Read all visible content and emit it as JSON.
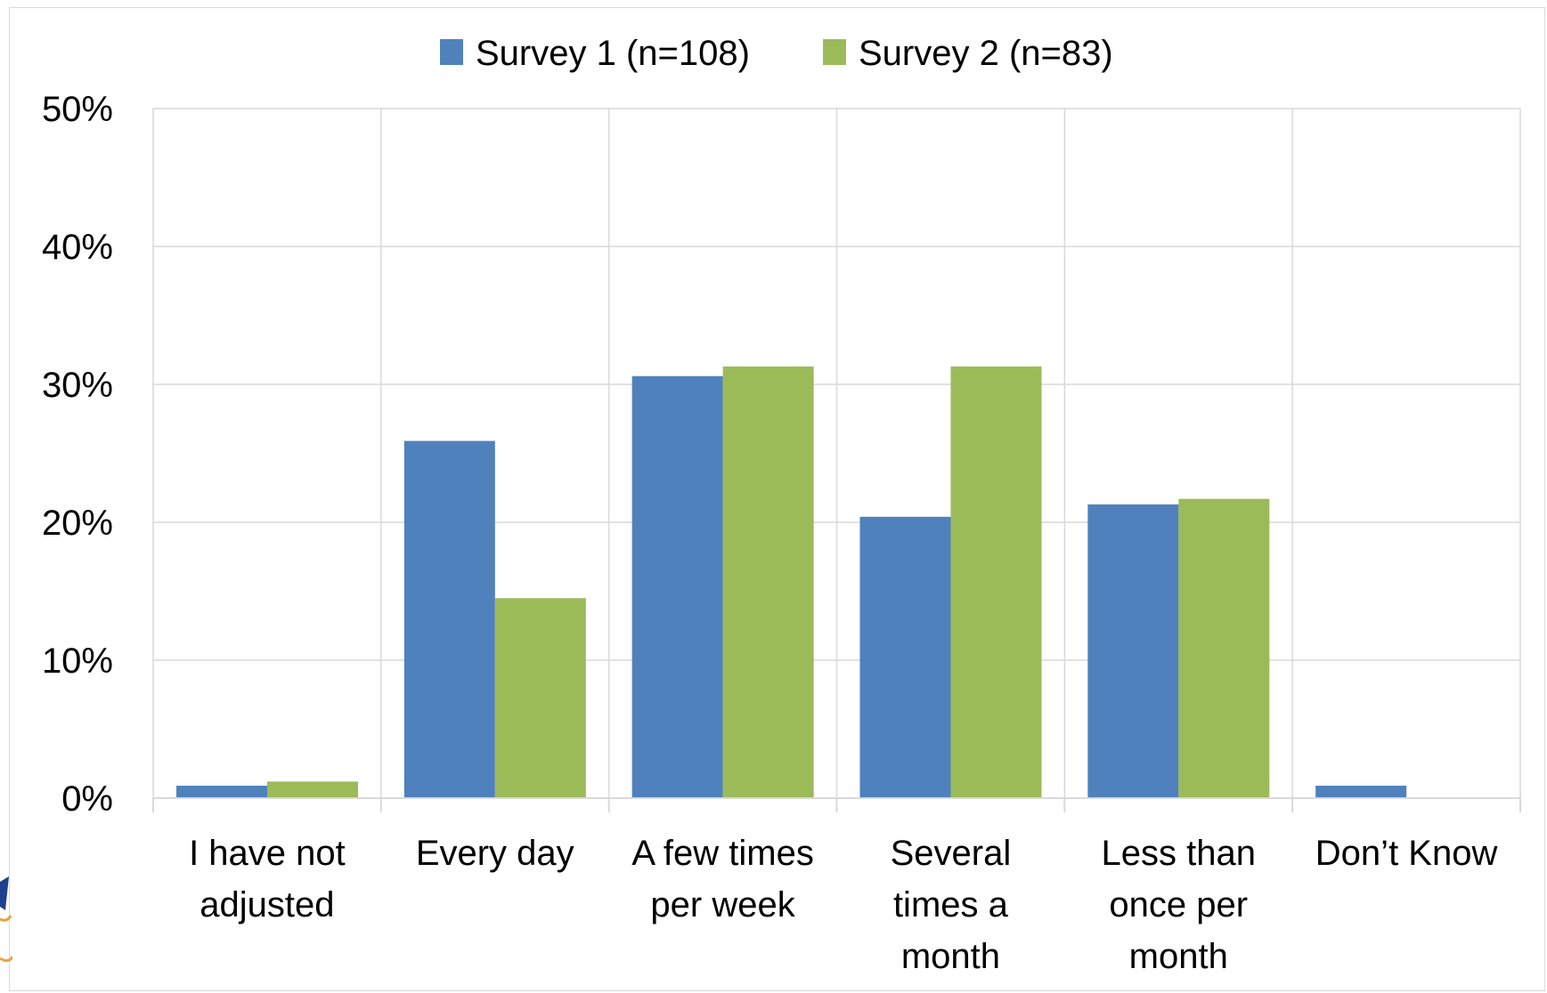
{
  "chart_data": {
    "type": "bar",
    "categories": [
      [
        "I have not",
        "adjusted"
      ],
      [
        "Every day"
      ],
      [
        "A few times",
        "per week"
      ],
      [
        "Several",
        "times a",
        "month"
      ],
      [
        "Less than",
        "once per",
        "month"
      ],
      [
        "Don’t Know"
      ]
    ],
    "series": [
      {
        "name": "Survey 1 (n=108)",
        "color": "#4f81bd",
        "values": [
          0.9,
          25.9,
          30.6,
          20.4,
          21.3,
          0.9
        ]
      },
      {
        "name": "Survey 2 (n=83)",
        "color": "#9bbb59",
        "values": [
          1.2,
          14.5,
          31.3,
          31.3,
          21.7,
          0
        ]
      }
    ],
    "ylim": [
      0,
      50
    ],
    "yticks": [
      0,
      10,
      20,
      30,
      40,
      50
    ],
    "ytick_labels": [
      "0%",
      "10%",
      "20%",
      "30%",
      "40%",
      "50%"
    ],
    "grid": true,
    "legend_position": "top",
    "title": "",
    "xlabel": "",
    "ylabel": ""
  }
}
